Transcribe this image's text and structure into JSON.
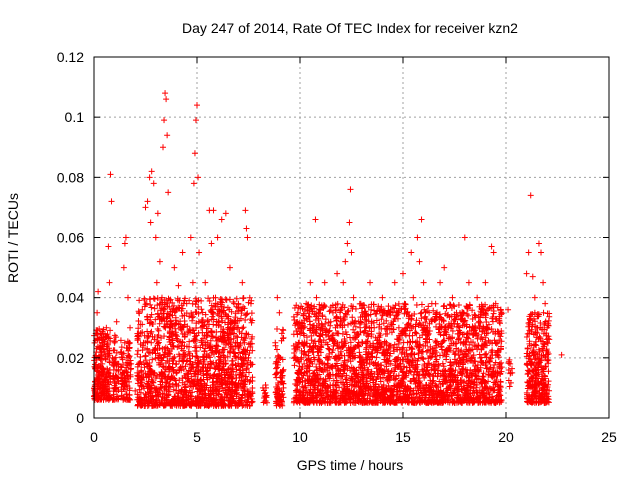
{
  "chart_data": {
    "type": "scatter",
    "title": "Day 247 of 2014, Rate Of TEC Index for receiver kzn2",
    "xlabel": "GPS time / hours",
    "ylabel": "ROTI / TECUs",
    "xlim": [
      0,
      25
    ],
    "ylim": [
      0,
      0.12
    ],
    "x_ticks": [
      0,
      5,
      10,
      15,
      20,
      25
    ],
    "x_tick_labels": [
      "0",
      "5",
      "10",
      "15",
      "20",
      "25"
    ],
    "y_ticks": [
      0,
      0.02,
      0.04,
      0.06,
      0.08,
      0.1,
      0.12
    ],
    "y_tick_labels": [
      "0",
      "0.02",
      "0.04",
      "0.06",
      "0.08",
      "0.1",
      "0.12"
    ],
    "grid": true,
    "marker": "plus",
    "color": "#ff0000",
    "series": [
      {
        "values": [
          [
            0.05,
            0.012
          ],
          [
            0.1,
            0.02
          ],
          [
            0.15,
            0.035
          ],
          [
            0.2,
            0.042
          ],
          [
            0.25,
            0.015
          ],
          [
            0.3,
            0.01
          ],
          [
            0.35,
            0.028
          ],
          [
            0.4,
            0.018
          ],
          [
            0.45,
            0.008
          ],
          [
            0.5,
            0.022
          ],
          [
            0.55,
            0.012
          ],
          [
            0.6,
            0.03
          ],
          [
            0.65,
            0.016
          ],
          [
            0.7,
            0.057
          ],
          [
            0.75,
            0.045
          ],
          [
            0.8,
            0.081
          ],
          [
            0.85,
            0.072
          ],
          [
            0.9,
            0.02
          ],
          [
            0.95,
            0.014
          ],
          [
            1.0,
            0.025
          ],
          [
            1.05,
            0.01
          ],
          [
            1.1,
            0.032
          ],
          [
            1.2,
            0.018
          ],
          [
            1.3,
            0.022
          ],
          [
            1.4,
            0.015
          ],
          [
            1.45,
            0.05
          ],
          [
            1.5,
            0.058
          ],
          [
            1.55,
            0.06
          ],
          [
            1.6,
            0.02
          ],
          [
            1.65,
            0.04
          ],
          [
            1.7,
            0.012
          ],
          [
            1.75,
            0.03
          ],
          [
            1.8,
            0.018
          ],
          [
            2.0,
            0.009
          ],
          [
            2.2,
            0.014
          ],
          [
            2.4,
            0.025
          ],
          [
            2.5,
            0.07
          ],
          [
            2.6,
            0.072
          ],
          [
            2.7,
            0.08
          ],
          [
            2.75,
            0.065
          ],
          [
            2.8,
            0.082
          ],
          [
            2.9,
            0.078
          ],
          [
            3.0,
            0.06
          ],
          [
            3.05,
            0.045
          ],
          [
            3.1,
            0.068
          ],
          [
            3.2,
            0.052
          ],
          [
            3.3,
            0.04
          ],
          [
            3.35,
            0.09
          ],
          [
            3.4,
            0.099
          ],
          [
            3.45,
            0.108
          ],
          [
            3.5,
            0.106
          ],
          [
            3.55,
            0.094
          ],
          [
            3.6,
            0.075
          ],
          [
            3.7,
            0.032
          ],
          [
            3.8,
            0.025
          ],
          [
            3.9,
            0.05
          ],
          [
            4.0,
            0.018
          ],
          [
            4.1,
            0.044
          ],
          [
            4.2,
            0.03
          ],
          [
            4.3,
            0.055
          ],
          [
            4.4,
            0.014
          ],
          [
            4.5,
            0.038
          ],
          [
            4.6,
            0.022
          ],
          [
            4.7,
            0.06
          ],
          [
            4.8,
            0.045
          ],
          [
            4.85,
            0.078
          ],
          [
            4.9,
            0.088
          ],
          [
            4.95,
            0.099
          ],
          [
            5.0,
            0.104
          ],
          [
            5.05,
            0.08
          ],
          [
            5.1,
            0.055
          ],
          [
            5.2,
            0.03
          ],
          [
            5.3,
            0.018
          ],
          [
            5.4,
            0.045
          ],
          [
            5.5,
            0.025
          ],
          [
            5.6,
            0.069
          ],
          [
            5.7,
            0.058
          ],
          [
            5.8,
            0.069
          ],
          [
            5.9,
            0.04
          ],
          [
            6.0,
            0.06
          ],
          [
            6.1,
            0.022
          ],
          [
            6.2,
            0.066
          ],
          [
            6.3,
            0.035
          ],
          [
            6.4,
            0.068
          ],
          [
            6.5,
            0.028
          ],
          [
            6.6,
            0.05
          ],
          [
            6.7,
            0.012
          ],
          [
            6.8,
            0.038
          ],
          [
            6.9,
            0.02
          ],
          [
            7.0,
            0.03
          ],
          [
            7.1,
            0.015
          ],
          [
            7.2,
            0.045
          ],
          [
            7.3,
            0.025
          ],
          [
            7.35,
            0.069
          ],
          [
            7.4,
            0.063
          ],
          [
            7.45,
            0.06
          ],
          [
            7.5,
            0.02
          ],
          [
            7.55,
            0.012
          ],
          [
            7.6,
            0.008
          ],
          [
            8.2,
            0.01
          ],
          [
            8.3,
            0.008
          ],
          [
            8.35,
            0.01
          ],
          [
            8.8,
            0.025
          ],
          [
            8.9,
            0.04
          ],
          [
            9.0,
            0.035
          ],
          [
            9.05,
            0.02
          ],
          [
            9.1,
            0.015
          ],
          [
            9.15,
            0.008
          ],
          [
            9.2,
            0.01
          ],
          [
            9.8,
            0.02
          ],
          [
            9.9,
            0.035
          ],
          [
            10.0,
            0.03
          ],
          [
            10.1,
            0.025
          ],
          [
            10.2,
            0.018
          ],
          [
            10.3,
            0.038
          ],
          [
            10.4,
            0.022
          ],
          [
            10.5,
            0.045
          ],
          [
            10.6,
            0.03
          ],
          [
            10.7,
            0.015
          ],
          [
            10.75,
            0.066
          ],
          [
            10.8,
            0.04
          ],
          [
            11.0,
            0.028
          ],
          [
            11.2,
            0.045
          ],
          [
            11.4,
            0.02
          ],
          [
            11.6,
            0.035
          ],
          [
            11.8,
            0.048
          ],
          [
            12.0,
            0.032
          ],
          [
            12.1,
            0.045
          ],
          [
            12.2,
            0.052
          ],
          [
            12.3,
            0.058
          ],
          [
            12.4,
            0.065
          ],
          [
            12.45,
            0.076
          ],
          [
            12.5,
            0.055
          ],
          [
            12.6,
            0.04
          ],
          [
            12.8,
            0.028
          ],
          [
            13.0,
            0.035
          ],
          [
            13.2,
            0.022
          ],
          [
            13.4,
            0.045
          ],
          [
            13.6,
            0.03
          ],
          [
            13.8,
            0.018
          ],
          [
            14.0,
            0.04
          ],
          [
            14.2,
            0.025
          ],
          [
            14.4,
            0.035
          ],
          [
            14.6,
            0.045
          ],
          [
            14.8,
            0.03
          ],
          [
            15.0,
            0.048
          ],
          [
            15.2,
            0.035
          ],
          [
            15.4,
            0.055
          ],
          [
            15.5,
            0.04
          ],
          [
            15.7,
            0.06
          ],
          [
            15.8,
            0.052
          ],
          [
            15.9,
            0.066
          ],
          [
            16.0,
            0.045
          ],
          [
            16.2,
            0.03
          ],
          [
            16.4,
            0.038
          ],
          [
            16.6,
            0.025
          ],
          [
            16.8,
            0.045
          ],
          [
            17.0,
            0.05
          ],
          [
            17.2,
            0.03
          ],
          [
            17.4,
            0.04
          ],
          [
            17.6,
            0.035
          ],
          [
            17.8,
            0.025
          ],
          [
            18.0,
            0.06
          ],
          [
            18.2,
            0.045
          ],
          [
            18.4,
            0.03
          ],
          [
            18.6,
            0.04
          ],
          [
            18.8,
            0.035
          ],
          [
            19.0,
            0.045
          ],
          [
            19.1,
            0.03
          ],
          [
            19.3,
            0.057
          ],
          [
            19.4,
            0.055
          ],
          [
            19.5,
            0.038
          ],
          [
            19.6,
            0.025
          ],
          [
            19.7,
            0.018
          ],
          [
            20.1,
            0.036
          ],
          [
            20.2,
            0.018
          ],
          [
            20.3,
            0.015
          ],
          [
            21.0,
            0.048
          ],
          [
            21.1,
            0.055
          ],
          [
            21.2,
            0.074
          ],
          [
            21.3,
            0.047
          ],
          [
            21.4,
            0.04
          ],
          [
            21.5,
            0.03
          ],
          [
            21.6,
            0.058
          ],
          [
            21.7,
            0.055
          ],
          [
            21.8,
            0.045
          ],
          [
            21.9,
            0.038
          ],
          [
            22.0,
            0.03
          ],
          [
            22.7,
            0.021
          ]
        ],
        "dense_bands": [
          {
            "x0": 0.0,
            "x1": 0.8,
            "y_min": 0.006,
            "y_max": 0.03,
            "n": 240
          },
          {
            "x0": 0.9,
            "x1": 1.2,
            "y_min": 0.006,
            "y_max": 0.028,
            "n": 60
          },
          {
            "x0": 1.3,
            "x1": 1.8,
            "y_min": 0.006,
            "y_max": 0.026,
            "n": 90
          },
          {
            "x0": 2.1,
            "x1": 7.7,
            "y_min": 0.004,
            "y_max": 0.04,
            "n": 1500
          },
          {
            "x0": 8.2,
            "x1": 8.4,
            "y_min": 0.005,
            "y_max": 0.012,
            "n": 12
          },
          {
            "x0": 8.8,
            "x1": 9.2,
            "y_min": 0.004,
            "y_max": 0.03,
            "n": 80
          },
          {
            "x0": 9.7,
            "x1": 19.8,
            "y_min": 0.005,
            "y_max": 0.038,
            "n": 2600
          },
          {
            "x0": 20.1,
            "x1": 20.3,
            "y_min": 0.01,
            "y_max": 0.02,
            "n": 10
          },
          {
            "x0": 21.0,
            "x1": 22.1,
            "y_min": 0.005,
            "y_max": 0.035,
            "n": 320
          }
        ]
      }
    ]
  }
}
